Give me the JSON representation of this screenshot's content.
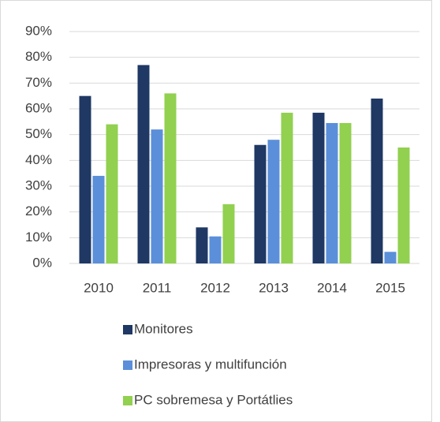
{
  "chart_data": {
    "type": "bar",
    "categories": [
      "2010",
      "2011",
      "2012",
      "2013",
      "2014",
      "2015"
    ],
    "series": [
      {
        "name": "Monitores",
        "color": "#1f3864",
        "values": [
          65,
          77,
          14,
          46,
          58.5,
          64
        ]
      },
      {
        "name": "Impresoras y multifunción",
        "color": "#5b8fd9",
        "values": [
          34,
          52,
          10.5,
          48,
          54.5,
          4.5
        ]
      },
      {
        "name": "PC  sobremesa y Portátlies",
        "color": "#92d050",
        "values": [
          54,
          66,
          23,
          58.5,
          54.5,
          45
        ]
      }
    ],
    "ylim": [
      0,
      90
    ],
    "yticks": [
      {
        "value": 0,
        "label": "0%"
      },
      {
        "value": 10,
        "label": "10%"
      },
      {
        "value": 20,
        "label": "20%"
      },
      {
        "value": 30,
        "label": "30%"
      },
      {
        "value": 40,
        "label": "40%"
      },
      {
        "value": 50,
        "label": "50%"
      },
      {
        "value": 60,
        "label": "60%"
      },
      {
        "value": 70,
        "label": "70%"
      },
      {
        "value": 80,
        "label": "80%"
      },
      {
        "value": 90,
        "label": "90%"
      }
    ],
    "grid": true,
    "legend": "bottom"
  }
}
